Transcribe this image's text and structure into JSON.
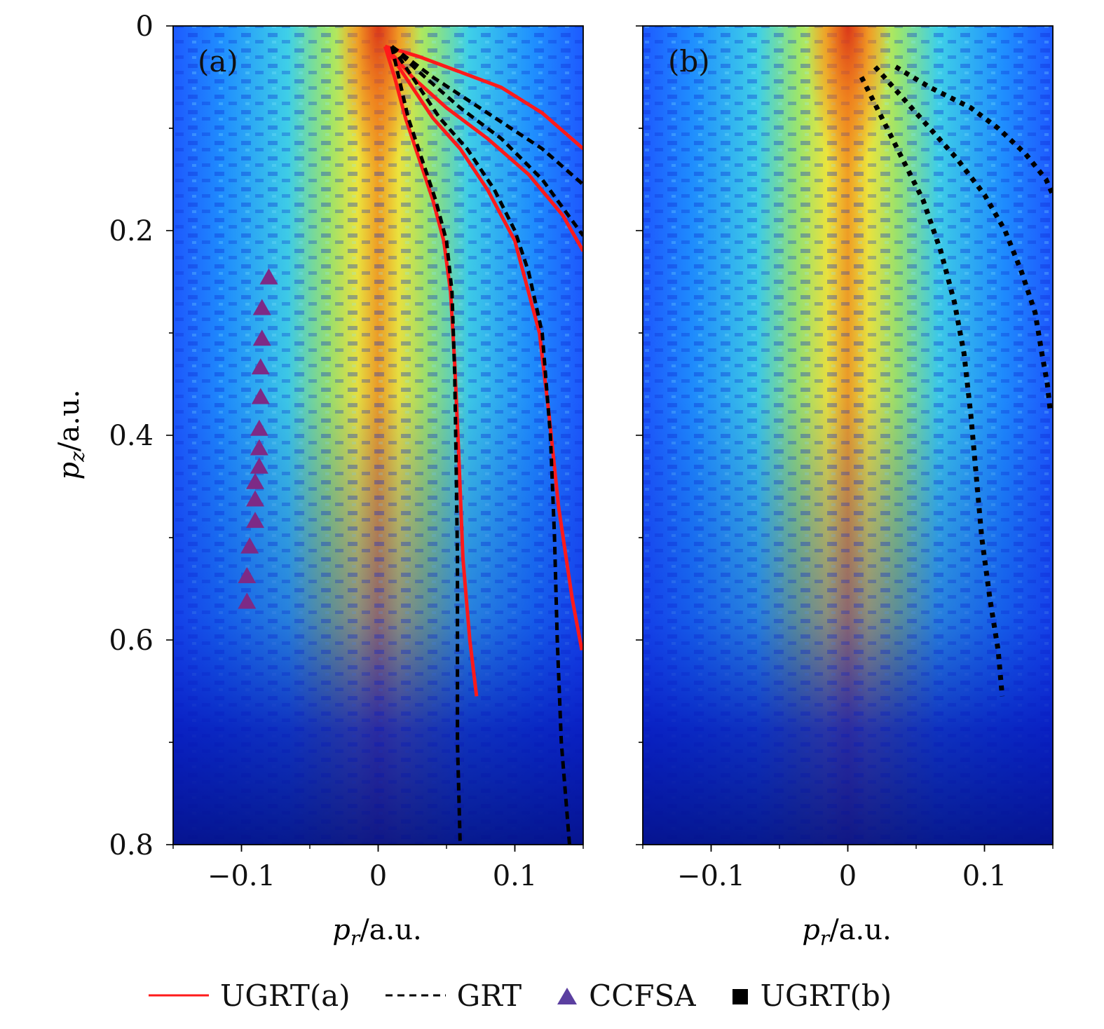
{
  "chart_data": [
    {
      "type": "heatmap",
      "panel_label": "(a)",
      "xlabel_var": "p",
      "xlabel_sub": "r",
      "xlabel_unit": "/a.u.",
      "ylabel_var": "p",
      "ylabel_sub": "z",
      "ylabel_unit": "/a.u.",
      "xlim": [
        -0.15,
        0.15
      ],
      "ylim": [
        0,
        0.8
      ],
      "y_inverted": true,
      "x_ticks": [
        -0.1,
        0,
        0.1
      ],
      "x_tick_labels": [
        "−0.1",
        "0",
        "0.1"
      ],
      "y_ticks": [
        0,
        0.2,
        0.4,
        0.6,
        0.8
      ],
      "y_tick_labels": [
        "0",
        "0.2",
        "0.4",
        "0.6",
        "0.8"
      ],
      "series": [
        {
          "name": "UGRT(a)",
          "style": "solid",
          "color": "#ff1a1a",
          "points": [
            [
              0.005,
              0.02
            ],
            [
              0.03,
              0.03
            ],
            [
              0.06,
              0.045
            ],
            [
              0.09,
              0.06
            ],
            [
              0.12,
              0.085
            ],
            [
              0.15,
              0.12
            ]
          ]
        },
        {
          "name": "UGRT(a)",
          "style": "solid",
          "color": "#ff1a1a",
          "points": [
            [
              0.005,
              0.02
            ],
            [
              0.025,
              0.05
            ],
            [
              0.05,
              0.08
            ],
            [
              0.08,
              0.11
            ],
            [
              0.11,
              0.145
            ],
            [
              0.135,
              0.185
            ],
            [
              0.15,
              0.22
            ]
          ]
        },
        {
          "name": "UGRT(a)",
          "style": "solid",
          "color": "#ff1a1a",
          "points": [
            [
              0.005,
              0.02
            ],
            [
              0.02,
              0.05
            ],
            [
              0.04,
              0.09
            ],
            [
              0.06,
              0.12
            ],
            [
              0.08,
              0.16
            ],
            [
              0.1,
              0.21
            ],
            [
              0.11,
              0.26
            ],
            [
              0.118,
              0.3
            ],
            [
              0.125,
              0.38
            ],
            [
              0.132,
              0.47
            ],
            [
              0.142,
              0.56
            ],
            [
              0.149,
              0.61
            ]
          ]
        },
        {
          "name": "UGRT(a)",
          "style": "solid",
          "color": "#ff1a1a",
          "points": [
            [
              0.005,
              0.02
            ],
            [
              0.012,
              0.05
            ],
            [
              0.02,
              0.09
            ],
            [
              0.03,
              0.13
            ],
            [
              0.04,
              0.17
            ],
            [
              0.048,
              0.21
            ],
            [
              0.053,
              0.26
            ],
            [
              0.056,
              0.33
            ],
            [
              0.059,
              0.42
            ],
            [
              0.062,
              0.52
            ],
            [
              0.067,
              0.6
            ],
            [
              0.072,
              0.655
            ]
          ]
        },
        {
          "name": "GRT",
          "style": "dashed",
          "color": "#000000",
          "points": [
            [
              0.01,
              0.02
            ],
            [
              0.04,
              0.05
            ],
            [
              0.08,
              0.085
            ],
            [
              0.12,
              0.12
            ],
            [
              0.15,
              0.155
            ]
          ]
        },
        {
          "name": "GRT",
          "style": "dashed",
          "color": "#000000",
          "points": [
            [
              0.01,
              0.02
            ],
            [
              0.03,
              0.045
            ],
            [
              0.06,
              0.08
            ],
            [
              0.09,
              0.11
            ],
            [
              0.12,
              0.15
            ],
            [
              0.15,
              0.205
            ]
          ]
        },
        {
          "name": "GRT",
          "style": "dashed",
          "color": "#000000",
          "points": [
            [
              0.01,
              0.02
            ],
            [
              0.025,
              0.05
            ],
            [
              0.045,
              0.09
            ],
            [
              0.065,
              0.12
            ],
            [
              0.085,
              0.16
            ],
            [
              0.1,
              0.2
            ],
            [
              0.11,
              0.24
            ],
            [
              0.12,
              0.3
            ],
            [
              0.126,
              0.4
            ],
            [
              0.129,
              0.5
            ],
            [
              0.131,
              0.6
            ],
            [
              0.134,
              0.7
            ],
            [
              0.14,
              0.8
            ]
          ]
        },
        {
          "name": "GRT",
          "style": "dashed",
          "color": "#000000",
          "points": [
            [
              0.01,
              0.02
            ],
            [
              0.015,
              0.05
            ],
            [
              0.022,
              0.09
            ],
            [
              0.032,
              0.13
            ],
            [
              0.042,
              0.17
            ],
            [
              0.05,
              0.21
            ],
            [
              0.054,
              0.26
            ],
            [
              0.056,
              0.34
            ],
            [
              0.057,
              0.42
            ],
            [
              0.058,
              0.52
            ],
            [
              0.058,
              0.6
            ],
            [
              0.058,
              0.7
            ],
            [
              0.06,
              0.8
            ]
          ]
        }
      ],
      "ccfsa_points": [
        [
          -0.08,
          0.245
        ],
        [
          -0.085,
          0.275
        ],
        [
          -0.085,
          0.305
        ],
        [
          -0.086,
          0.333
        ],
        [
          -0.086,
          0.362
        ],
        [
          -0.087,
          0.393
        ],
        [
          -0.087,
          0.412
        ],
        [
          -0.087,
          0.43
        ],
        [
          -0.09,
          0.445
        ],
        [
          -0.09,
          0.462
        ],
        [
          -0.09,
          0.483
        ],
        [
          -0.094,
          0.508
        ],
        [
          -0.096,
          0.537
        ],
        [
          -0.096,
          0.562
        ]
      ]
    },
    {
      "type": "heatmap",
      "panel_label": "(b)",
      "xlabel_var": "p",
      "xlabel_sub": "r",
      "xlabel_unit": "/a.u.",
      "xlim": [
        -0.15,
        0.15
      ],
      "ylim": [
        0,
        0.8
      ],
      "y_inverted": true,
      "x_ticks": [
        -0.1,
        0,
        0.1
      ],
      "x_tick_labels": [
        "−0.1",
        "0",
        "0.1"
      ],
      "series": [
        {
          "name": "UGRT(b)",
          "style": "dotted",
          "color": "#000000",
          "points": [
            [
              0.035,
              0.04
            ],
            [
              0.06,
              0.06
            ],
            [
              0.09,
              0.08
            ],
            [
              0.11,
              0.1
            ],
            [
              0.13,
              0.125
            ],
            [
              0.145,
              0.15
            ],
            [
              0.15,
              0.165
            ]
          ]
        },
        {
          "name": "UGRT(b)",
          "style": "dotted",
          "color": "#000000",
          "points": [
            [
              0.02,
              0.04
            ],
            [
              0.04,
              0.07
            ],
            [
              0.06,
              0.1
            ],
            [
              0.08,
              0.13
            ],
            [
              0.1,
              0.165
            ],
            [
              0.115,
              0.2
            ],
            [
              0.127,
              0.24
            ],
            [
              0.137,
              0.28
            ],
            [
              0.142,
              0.32
            ],
            [
              0.146,
              0.35
            ],
            [
              0.148,
              0.375
            ]
          ]
        },
        {
          "name": "UGRT(b)",
          "style": "dotted",
          "color": "#000000",
          "points": [
            [
              0.01,
              0.05
            ],
            [
              0.025,
              0.09
            ],
            [
              0.04,
              0.13
            ],
            [
              0.055,
              0.17
            ],
            [
              0.068,
              0.22
            ],
            [
              0.078,
              0.27
            ],
            [
              0.085,
              0.32
            ],
            [
              0.09,
              0.38
            ],
            [
              0.094,
              0.44
            ],
            [
              0.098,
              0.5
            ],
            [
              0.104,
              0.56
            ],
            [
              0.11,
              0.61
            ],
            [
              0.113,
              0.655
            ]
          ]
        }
      ]
    }
  ],
  "legend": [
    {
      "label": "UGRT(a)",
      "marker": "line",
      "color": "#ff1a1a"
    },
    {
      "label": "GRT",
      "marker": "dashed",
      "color": "#000000"
    },
    {
      "label": "CCFSA",
      "marker": "triangle",
      "color": "#5b3fa0"
    },
    {
      "label": "UGRT(b)",
      "marker": "square",
      "color": "#000000"
    }
  ]
}
